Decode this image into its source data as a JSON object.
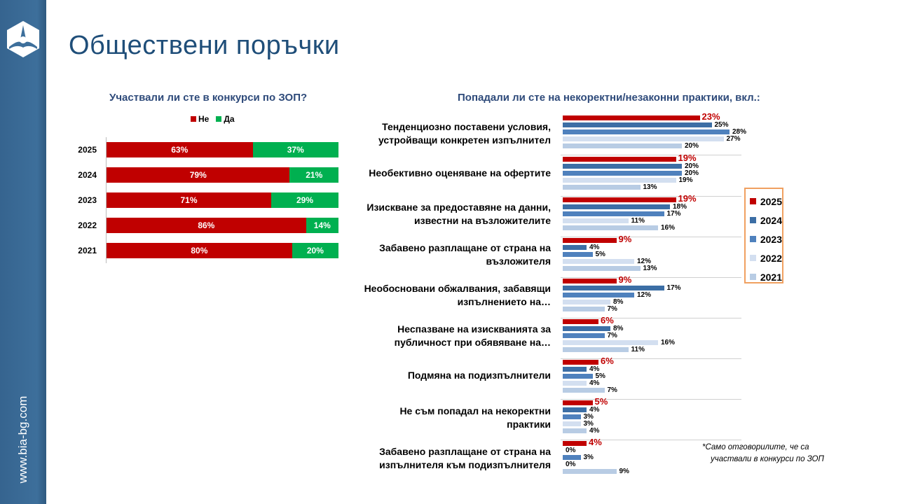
{
  "sidebar": {
    "site": "www.bia-bg.com"
  },
  "title": "Обществени поръчки",
  "chart_data": [
    {
      "type": "bar",
      "orientation": "horizontal",
      "stacked": true,
      "title": "Участвали ли сте в конкурси по ЗОП?",
      "categories": [
        "2025",
        "2024",
        "2023",
        "2022",
        "2021"
      ],
      "series": [
        {
          "name": "Не",
          "color": "#c00000",
          "values": [
            63,
            79,
            71,
            86,
            80
          ]
        },
        {
          "name": "Да",
          "color": "#00b050",
          "values": [
            37,
            21,
            29,
            14,
            20
          ]
        }
      ],
      "xlim": [
        0,
        100
      ],
      "legend": "top",
      "unit": "%"
    },
    {
      "type": "bar",
      "orientation": "horizontal",
      "title": "Попадали ли сте на некоректни/незаконни практики, вкл.:",
      "categories": [
        "Тенденциозно поставени условия, устройващи конкретен изпълнител",
        "Необективно оценяване на офертите",
        "Изискване за предоставяне на данни, известни на възложителите",
        "Забавено разплащане от страна на възложителя",
        "Необосновани обжалвания, забавящи изпълнението на…",
        "Неспазване на изискванията за публичност при обявяване на…",
        "Подмяна на подизпълнители",
        "Не съм попадал на некоректни практики",
        "Забавено разплащане от страна на изпълнителя към подизпълнителя"
      ],
      "series": [
        {
          "name": "2025",
          "color": "#c00000",
          "values": [
            23,
            19,
            19,
            9,
            9,
            6,
            6,
            5,
            4
          ]
        },
        {
          "name": "2024",
          "color": "#3c6ea5",
          "values": [
            25,
            20,
            18,
            4,
            17,
            8,
            4,
            4,
            0
          ]
        },
        {
          "name": "2023",
          "color": "#4f81bd",
          "values": [
            28,
            20,
            17,
            5,
            12,
            7,
            5,
            3,
            3
          ]
        },
        {
          "name": "2022",
          "color": "#d3dff0",
          "values": [
            27,
            19,
            11,
            12,
            8,
            16,
            4,
            3,
            0
          ]
        },
        {
          "name": "2021",
          "color": "#b8cce4",
          "values": [
            20,
            13,
            16,
            13,
            7,
            11,
            7,
            4,
            9
          ]
        }
      ],
      "legend": "right",
      "unit": "%",
      "note": [
        "*Само отговорилите, че са",
        "участвали в конкурси по ЗОП"
      ]
    }
  ]
}
